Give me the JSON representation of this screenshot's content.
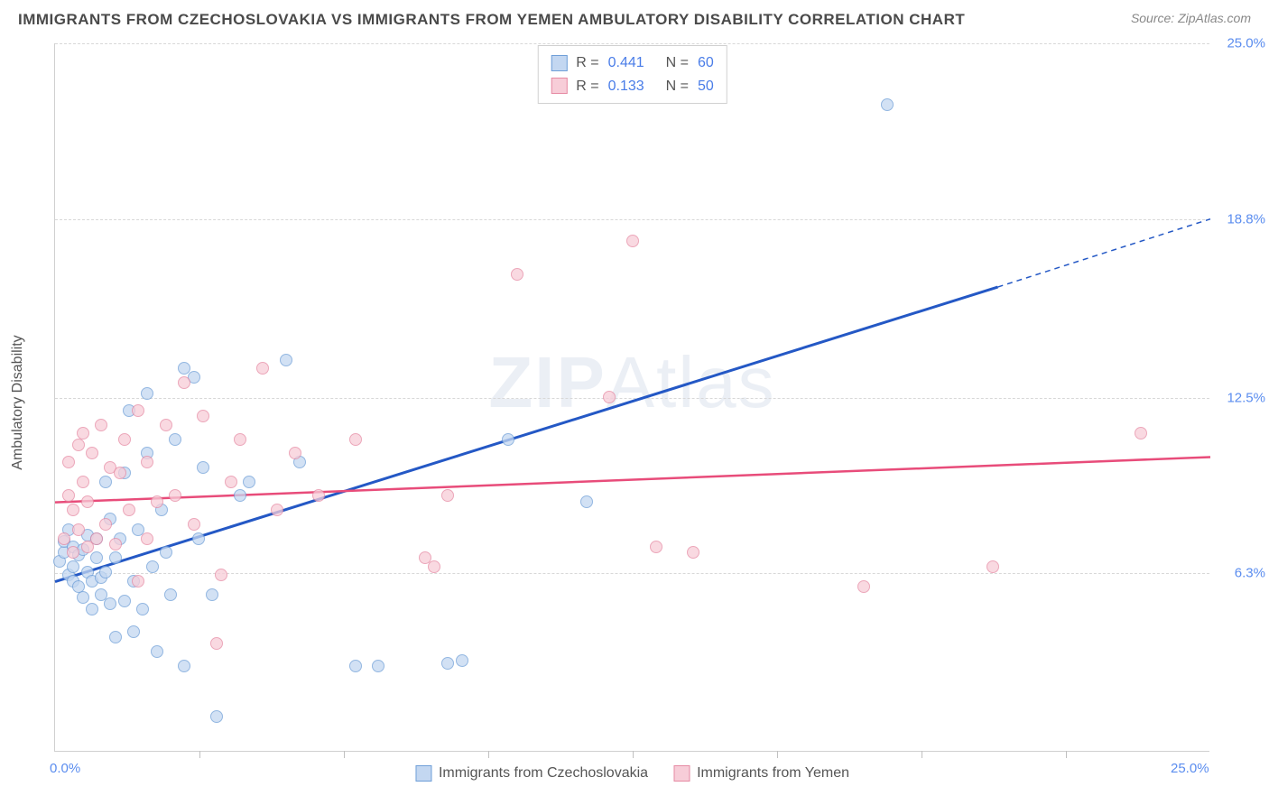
{
  "title": "IMMIGRANTS FROM CZECHOSLOVAKIA VS IMMIGRANTS FROM YEMEN AMBULATORY DISABILITY CORRELATION CHART",
  "source_label": "Source: ZipAtlas.com",
  "watermark_bold": "ZIP",
  "watermark_light": "Atlas",
  "y_axis_title": "Ambulatory Disability",
  "chart": {
    "type": "scatter",
    "xlim": [
      0,
      25
    ],
    "ylim": [
      0,
      25
    ],
    "x_tick_labels": [
      {
        "v": 0,
        "label": "0.0%"
      },
      {
        "v": 25,
        "label": "25.0%"
      }
    ],
    "x_minor_ticks": [
      3.125,
      6.25,
      9.375,
      12.5,
      15.625,
      18.75,
      21.875
    ],
    "y_tick_labels": [
      {
        "v": 6.3,
        "label": "6.3%"
      },
      {
        "v": 12.5,
        "label": "12.5%"
      },
      {
        "v": 18.8,
        "label": "18.8%"
      },
      {
        "v": 25.0,
        "label": "25.0%"
      }
    ],
    "grid_color": "#d8d8d8",
    "background": "#ffffff",
    "marker_radius": 7,
    "series": [
      {
        "name": "Immigrants from Czechoslovakia",
        "legend_label": "Immigrants from Czechoslovakia",
        "fill": "#c3d7f1",
        "stroke": "#6f9fd8",
        "fill_opacity": 0.75,
        "r_value": "0.441",
        "n_value": "60",
        "trend": {
          "x1": 0,
          "y1": 6.0,
          "x2": 20.4,
          "y2": 16.4,
          "x3": 25,
          "y3": 18.8,
          "color": "#2458c5",
          "width": 3
        },
        "points": [
          [
            0.1,
            6.7
          ],
          [
            0.2,
            7.0
          ],
          [
            0.2,
            7.4
          ],
          [
            0.3,
            6.2
          ],
          [
            0.3,
            7.8
          ],
          [
            0.4,
            6.5
          ],
          [
            0.4,
            6.0
          ],
          [
            0.4,
            7.2
          ],
          [
            0.5,
            5.8
          ],
          [
            0.5,
            6.9
          ],
          [
            0.6,
            7.1
          ],
          [
            0.6,
            5.4
          ],
          [
            0.7,
            6.3
          ],
          [
            0.7,
            7.6
          ],
          [
            0.8,
            6.0
          ],
          [
            0.8,
            5.0
          ],
          [
            0.9,
            6.8
          ],
          [
            0.9,
            7.5
          ],
          [
            1.0,
            6.1
          ],
          [
            1.0,
            5.5
          ],
          [
            1.1,
            9.5
          ],
          [
            1.1,
            6.3
          ],
          [
            1.2,
            5.2
          ],
          [
            1.2,
            8.2
          ],
          [
            1.3,
            6.8
          ],
          [
            1.3,
            4.0
          ],
          [
            1.4,
            7.5
          ],
          [
            1.5,
            5.3
          ],
          [
            1.5,
            9.8
          ],
          [
            1.6,
            12.0
          ],
          [
            1.7,
            6.0
          ],
          [
            1.7,
            4.2
          ],
          [
            1.8,
            7.8
          ],
          [
            1.9,
            5.0
          ],
          [
            2.0,
            12.6
          ],
          [
            2.0,
            10.5
          ],
          [
            2.1,
            6.5
          ],
          [
            2.2,
            3.5
          ],
          [
            2.3,
            8.5
          ],
          [
            2.4,
            7.0
          ],
          [
            2.5,
            5.5
          ],
          [
            2.6,
            11.0
          ],
          [
            2.8,
            13.5
          ],
          [
            2.8,
            3.0
          ],
          [
            3.0,
            13.2
          ],
          [
            3.1,
            7.5
          ],
          [
            3.2,
            10.0
          ],
          [
            3.4,
            5.5
          ],
          [
            3.5,
            1.2
          ],
          [
            4.0,
            9.0
          ],
          [
            4.2,
            9.5
          ],
          [
            5.0,
            13.8
          ],
          [
            5.3,
            10.2
          ],
          [
            6.5,
            3.0
          ],
          [
            7.0,
            3.0
          ],
          [
            8.5,
            3.1
          ],
          [
            8.8,
            3.2
          ],
          [
            9.8,
            11.0
          ],
          [
            11.5,
            8.8
          ],
          [
            18.0,
            22.8
          ]
        ]
      },
      {
        "name": "Immigrants from Yemen",
        "legend_label": "Immigrants from Yemen",
        "fill": "#f7cdd8",
        "stroke": "#e68aa3",
        "fill_opacity": 0.75,
        "r_value": "0.133",
        "n_value": "50",
        "trend": {
          "x1": 0,
          "y1": 8.8,
          "x2": 25,
          "y2": 10.4,
          "color": "#e84c7a",
          "width": 2.5
        },
        "points": [
          [
            0.2,
            7.5
          ],
          [
            0.3,
            9.0
          ],
          [
            0.3,
            10.2
          ],
          [
            0.4,
            7.0
          ],
          [
            0.4,
            8.5
          ],
          [
            0.5,
            10.8
          ],
          [
            0.5,
            7.8
          ],
          [
            0.6,
            9.5
          ],
          [
            0.6,
            11.2
          ],
          [
            0.7,
            7.2
          ],
          [
            0.7,
            8.8
          ],
          [
            0.8,
            10.5
          ],
          [
            0.9,
            7.5
          ],
          [
            1.0,
            11.5
          ],
          [
            1.1,
            8.0
          ],
          [
            1.2,
            10.0
          ],
          [
            1.3,
            7.3
          ],
          [
            1.4,
            9.8
          ],
          [
            1.5,
            11.0
          ],
          [
            1.6,
            8.5
          ],
          [
            1.8,
            12.0
          ],
          [
            1.8,
            6.0
          ],
          [
            2.0,
            7.5
          ],
          [
            2.0,
            10.2
          ],
          [
            2.2,
            8.8
          ],
          [
            2.4,
            11.5
          ],
          [
            2.6,
            9.0
          ],
          [
            2.8,
            13.0
          ],
          [
            3.0,
            8.0
          ],
          [
            3.2,
            11.8
          ],
          [
            3.5,
            3.8
          ],
          [
            3.6,
            6.2
          ],
          [
            3.8,
            9.5
          ],
          [
            4.0,
            11.0
          ],
          [
            4.5,
            13.5
          ],
          [
            4.8,
            8.5
          ],
          [
            5.2,
            10.5
          ],
          [
            5.7,
            9.0
          ],
          [
            6.5,
            11.0
          ],
          [
            8.0,
            6.8
          ],
          [
            8.2,
            6.5
          ],
          [
            8.5,
            9.0
          ],
          [
            10.0,
            16.8
          ],
          [
            12.0,
            12.5
          ],
          [
            12.5,
            18.0
          ],
          [
            13.0,
            7.2
          ],
          [
            13.8,
            7.0
          ],
          [
            17.5,
            5.8
          ],
          [
            20.3,
            6.5
          ],
          [
            23.5,
            11.2
          ]
        ]
      }
    ]
  },
  "legend_r_label": "R =",
  "legend_n_label": "N ="
}
